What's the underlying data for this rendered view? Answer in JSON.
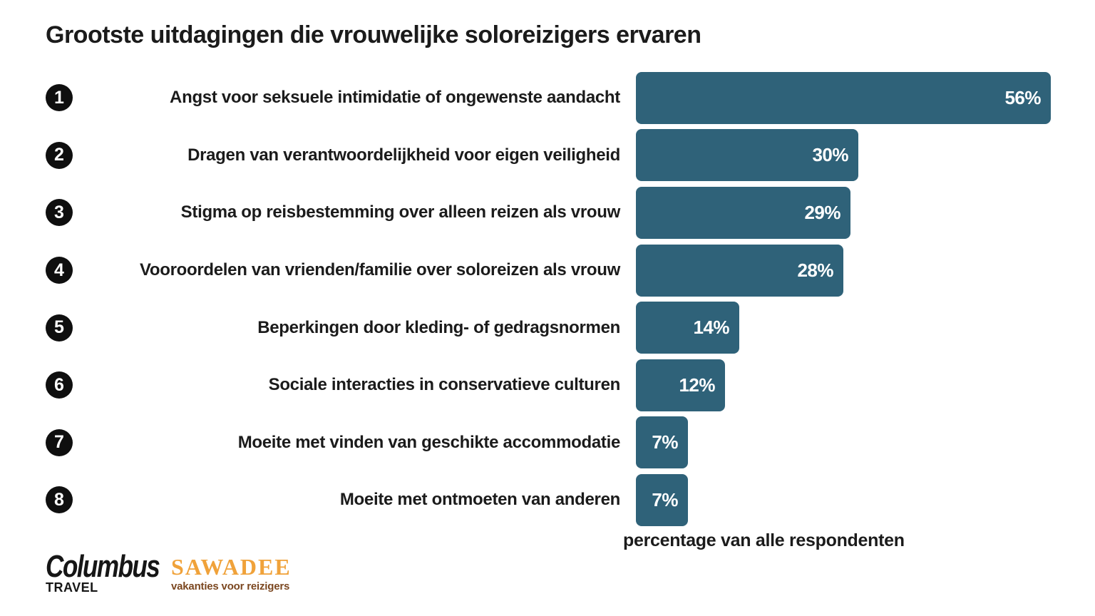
{
  "title": "Grootste uitdagingen die vrouwelijke soloreizigers ervaren",
  "chart_data": {
    "type": "bar",
    "orientation": "horizontal",
    "title": "Grootste uitdagingen die vrouwelijke soloreizigers ervaren",
    "xlabel": "percentage van alle respondenten",
    "ylabel": "",
    "xlim": [
      0,
      62
    ],
    "grid": false,
    "legend": false,
    "bar_color": "#2f6279",
    "value_label_color": "#ffffff",
    "ranks": [
      "1",
      "2",
      "3",
      "4",
      "5",
      "6",
      "7",
      "8"
    ],
    "categories": [
      "Angst voor seksuele intimidatie of ongewenste aandacht",
      "Dragen van verantwoordelijkheid voor eigen veiligheid",
      "Stigma op reisbestemming over alleen reizen als vrouw",
      "Vooroordelen van vrienden/familie over soloreizen als vrouw",
      "Beperkingen door kleding- of gedragsnormen",
      "Sociale interacties in conservatieve culturen",
      "Moeite met vinden van geschikte accommodatie",
      "Moeite met ontmoeten van anderen"
    ],
    "values": [
      56,
      30,
      29,
      28,
      14,
      12,
      7,
      7
    ],
    "value_labels": [
      "56%",
      "30%",
      "29%",
      "28%",
      "14%",
      "12%",
      "7%",
      "7%"
    ]
  },
  "footer": {
    "columbus": {
      "name": "Columbus",
      "subtext": "TRAVEL"
    },
    "sawadee": {
      "name": "SAWADEE",
      "tagline": "vakanties voor reizigers"
    }
  }
}
